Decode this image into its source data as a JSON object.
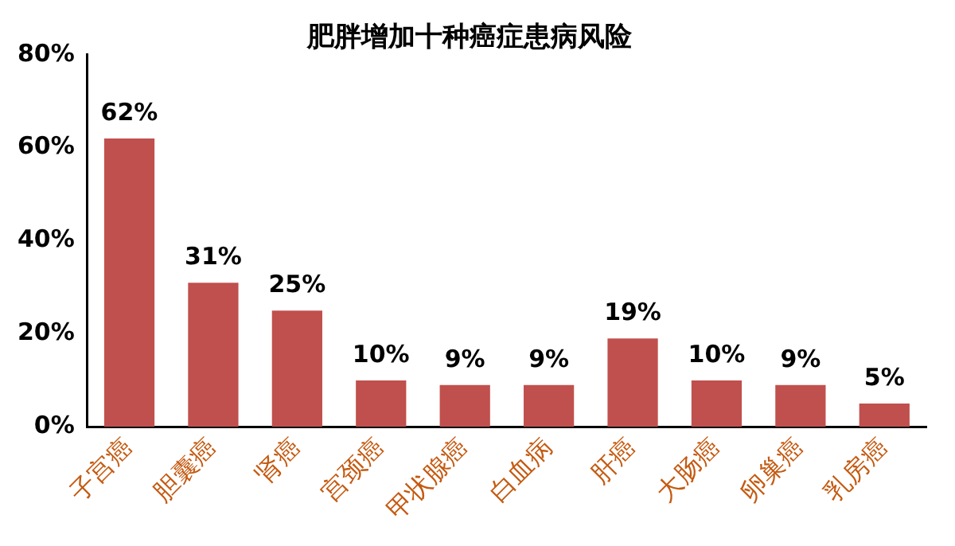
{
  "chart_data": {
    "type": "bar",
    "title": "肥胖增加十种癌症患病风险",
    "categories": [
      "子宫癌",
      "胆囊癌",
      "肾癌",
      "宫颈癌",
      "甲状腺癌",
      "白血病",
      "肝癌",
      "大肠癌",
      "卵巢癌",
      "乳房癌"
    ],
    "values": [
      62,
      31,
      25,
      10,
      9,
      9,
      19,
      10,
      9,
      5
    ],
    "value_labels": [
      "62%",
      "31%",
      "25%",
      "10%",
      "9%",
      "9%",
      "19%",
      "10%",
      "9%",
      "5%"
    ],
    "color": "#c0504d",
    "ylim": [
      0,
      80
    ],
    "yticks": [
      {
        "value": 0,
        "label": "0%"
      },
      {
        "value": 20,
        "label": "20%"
      },
      {
        "value": 40,
        "label": "40%"
      },
      {
        "value": 60,
        "label": "60%"
      },
      {
        "value": 80,
        "label": "80%"
      }
    ],
    "grid": false,
    "legend": false
  }
}
